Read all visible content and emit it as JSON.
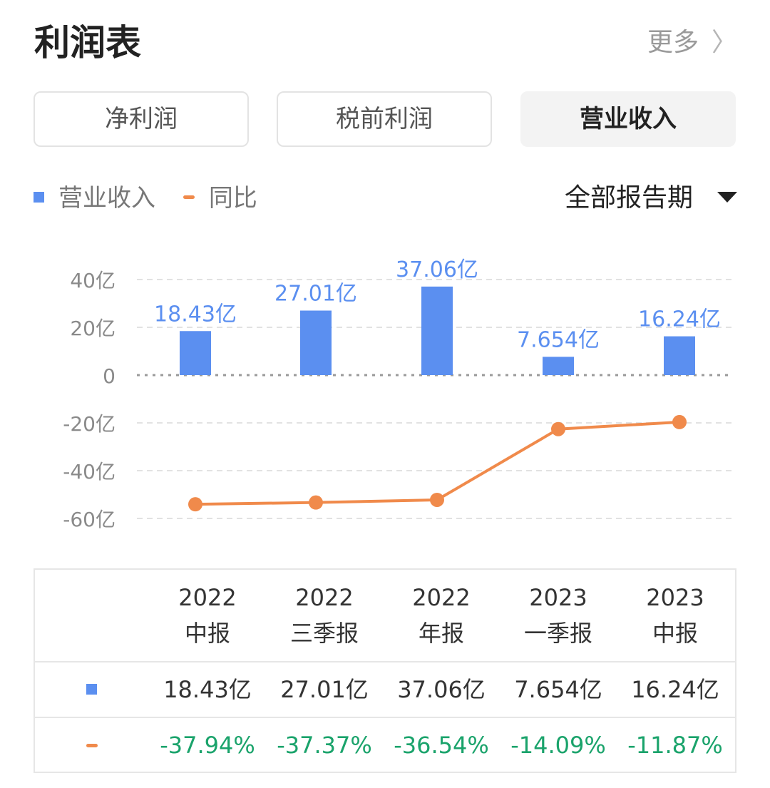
{
  "header": {
    "title": "利润表",
    "more_label": "更多",
    "more_chevron": "〉"
  },
  "tabs": [
    {
      "label": "净利润",
      "active": false
    },
    {
      "label": "税前利润",
      "active": false
    },
    {
      "label": "营业收入",
      "active": true
    }
  ],
  "legend": {
    "bar_label": "营业收入",
    "line_label": "同比"
  },
  "period_selector": {
    "value": "全部报告期"
  },
  "colors": {
    "bar": "#5b8ff0",
    "line": "#f08a4b",
    "negative_text": "#1aa36b",
    "bar_label": "#5b8ff0"
  },
  "chart_data": {
    "type": "bar",
    "categories": [
      "2022 中报",
      "2022 三季报",
      "2022 年报",
      "2023 一季报",
      "2023 中报"
    ],
    "series": [
      {
        "name": "营业收入",
        "type": "bar",
        "values": [
          18.43,
          27.01,
          37.06,
          7.654,
          16.24
        ],
        "labels": [
          "18.43亿",
          "27.01亿",
          "37.06亿",
          "7.654亿",
          "16.24亿"
        ]
      },
      {
        "name": "同比",
        "type": "line",
        "values": [
          -37.94,
          -37.37,
          -36.54,
          -14.09,
          -11.87
        ]
      }
    ],
    "yticks": [
      "40亿",
      "20亿",
      "0",
      "-20亿",
      "-40亿",
      "-60亿"
    ],
    "tick_values": [
      40,
      20,
      0,
      -20,
      -40,
      -60
    ],
    "ylim": [
      -60,
      40
    ],
    "grid": true
  },
  "table": {
    "headers": [
      {
        "year": "2022",
        "period": "中报"
      },
      {
        "year": "2022",
        "period": "三季报"
      },
      {
        "year": "2022",
        "period": "年报"
      },
      {
        "year": "2023",
        "period": "一季报"
      },
      {
        "year": "2023",
        "period": "中报"
      }
    ],
    "revenue": [
      "18.43亿",
      "27.01亿",
      "37.06亿",
      "7.654亿",
      "16.24亿"
    ],
    "yoy": [
      "-37.94%",
      "-37.37%",
      "-36.54%",
      "-14.09%",
      "-11.87%"
    ]
  }
}
